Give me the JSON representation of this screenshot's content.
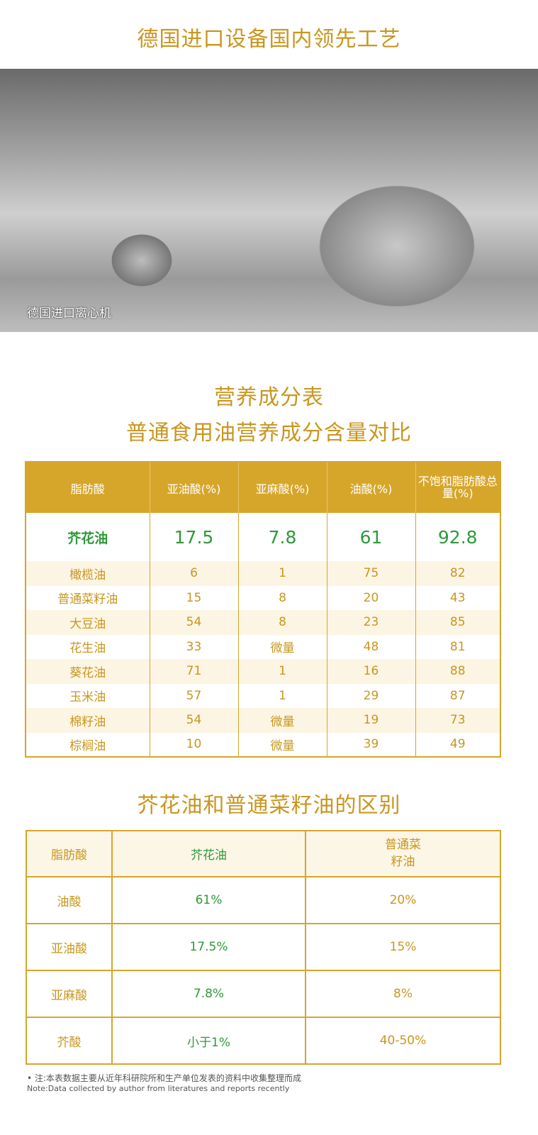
{
  "header": {
    "title": "德国进口设备国内领先工艺"
  },
  "photo": {
    "caption": "德国进口离心机"
  },
  "nutrition": {
    "title": "营养成分表",
    "subtitle": "普通食用油营养成分含量对比",
    "columns": [
      "脂肪酸",
      "亚油酸(%)",
      "亚麻酸(%)",
      "油酸(%)",
      "不饱和脂肪酸总量(%)"
    ],
    "rows": [
      [
        "芥花油",
        "17.5",
        "7.8",
        "61",
        "92.8"
      ],
      [
        "橄榄油",
        "6",
        "1",
        "75",
        "82"
      ],
      [
        "普通菜籽油",
        "15",
        "8",
        "20",
        "43"
      ],
      [
        "大豆油",
        "54",
        "8",
        "23",
        "85"
      ],
      [
        "花生油",
        "33",
        "微量",
        "48",
        "81"
      ],
      [
        "葵花油",
        "71",
        "1",
        "16",
        "88"
      ],
      [
        "玉米油",
        "57",
        "1",
        "29",
        "87"
      ],
      [
        "棉籽油",
        "54",
        "微量",
        "19",
        "73"
      ],
      [
        "棕榈油",
        "10",
        "微量",
        "39",
        "49"
      ]
    ]
  },
  "compare": {
    "title": "芥花油和普通菜籽油的区别",
    "columns": [
      "脂肪酸",
      "芥花油",
      "普通菜籽油"
    ],
    "rows": [
      [
        "油酸",
        "61%",
        "20%"
      ],
      [
        "亚油酸",
        "17.5%",
        "15%"
      ],
      [
        "亚麻酸",
        "7.8%",
        "8%"
      ],
      [
        "芥酸",
        "小于1%",
        "40-50%"
      ]
    ]
  },
  "note": {
    "zh": "• 注:本表数据主要从近年科研院所和生产单位发表的资料中收集整理而成",
    "en": "Note:Data collected by author from literatures and reports recently"
  },
  "colors": {
    "gold": "#d6a62b",
    "text_gold": "#c9961f",
    "green": "#2e9a3a"
  }
}
